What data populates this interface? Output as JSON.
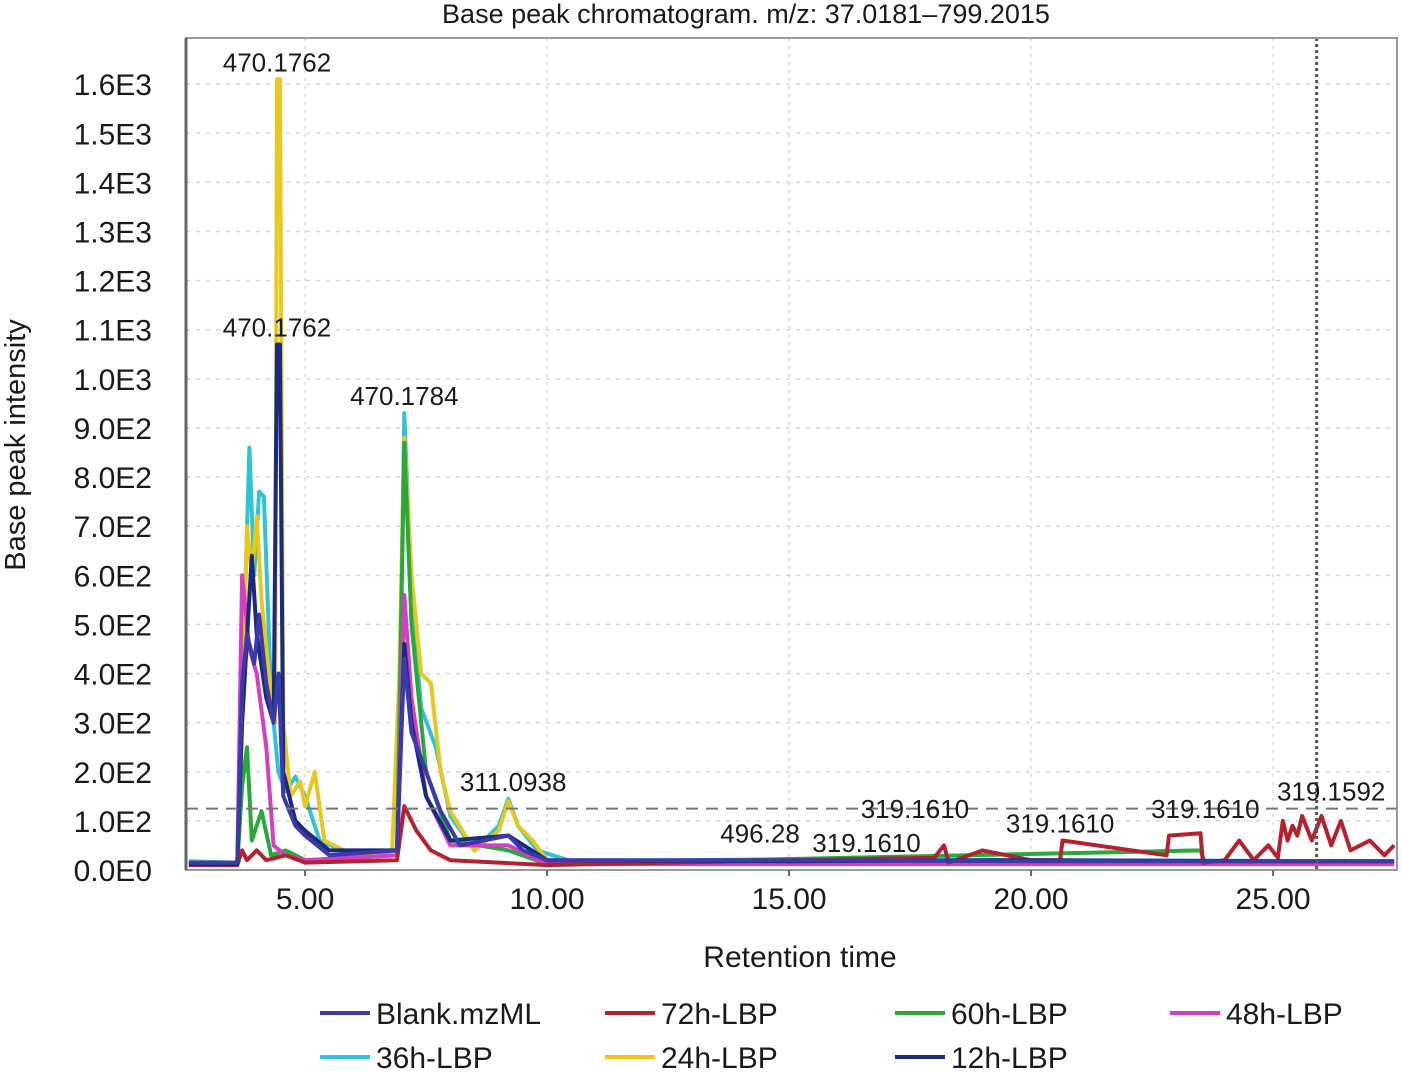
{
  "chart_data": {
    "type": "line",
    "title": "Base peak chromatogram. m/z: 37.0181–799.2015",
    "xlabel": "Retention time",
    "ylabel": "Base peak intensity",
    "xlim": [
      2.54,
      27.56
    ],
    "ylim": [
      0,
      1694
    ],
    "grid": true,
    "legend_position": "bottom",
    "x_ticks": [
      {
        "v": 5,
        "label": "5.00"
      },
      {
        "v": 10,
        "label": "10.00"
      },
      {
        "v": 15,
        "label": "15.00"
      },
      {
        "v": 20,
        "label": "20.00"
      },
      {
        "v": 25,
        "label": "25.00"
      }
    ],
    "y_ticks": [
      {
        "v": 0,
        "label": "0.0E0"
      },
      {
        "v": 100,
        "label": "1.0E2"
      },
      {
        "v": 200,
        "label": "2.0E2"
      },
      {
        "v": 300,
        "label": "3.0E2"
      },
      {
        "v": 400,
        "label": "4.0E2"
      },
      {
        "v": 500,
        "label": "5.0E2"
      },
      {
        "v": 600,
        "label": "6.0E2"
      },
      {
        "v": 700,
        "label": "7.0E2"
      },
      {
        "v": 800,
        "label": "8.0E2"
      },
      {
        "v": 900,
        "label": "9.0E2"
      },
      {
        "v": 1000,
        "label": "1.0E3"
      },
      {
        "v": 1100,
        "label": "1.1E3"
      },
      {
        "v": 1200,
        "label": "1.2E3"
      },
      {
        "v": 1300,
        "label": "1.3E3"
      },
      {
        "v": 1400,
        "label": "1.4E3"
      },
      {
        "v": 1500,
        "label": "1.5E3"
      },
      {
        "v": 1600,
        "label": "1.6E3"
      }
    ],
    "threshold_line": 125,
    "cursor_line_x": 25.9,
    "series": [
      {
        "name": "36h-LBP",
        "color": "#2fc3d6",
        "points": [
          [
            2.6,
            18
          ],
          [
            3.6,
            15
          ],
          [
            3.7,
            350
          ],
          [
            3.85,
            860
          ],
          [
            3.95,
            600
          ],
          [
            4.05,
            770
          ],
          [
            4.15,
            760
          ],
          [
            4.3,
            350
          ],
          [
            4.45,
            200
          ],
          [
            4.6,
            160
          ],
          [
            4.8,
            190
          ],
          [
            5.0,
            150
          ],
          [
            5.3,
            60
          ],
          [
            6,
            30
          ],
          [
            6.9,
            40
          ],
          [
            6.98,
            500
          ],
          [
            7.05,
            930
          ],
          [
            7.2,
            560
          ],
          [
            7.4,
            330
          ],
          [
            7.7,
            250
          ],
          [
            8.0,
            110
          ],
          [
            8.5,
            40
          ],
          [
            9.0,
            90
          ],
          [
            9.2,
            145
          ],
          [
            9.4,
            90
          ],
          [
            9.8,
            40
          ],
          [
            10.5,
            18
          ],
          [
            15,
            22
          ],
          [
            20,
            20
          ],
          [
            27.5,
            18
          ]
        ]
      },
      {
        "name": "24h-LBP",
        "color": "#e8c81e",
        "points": [
          [
            2.6,
            15
          ],
          [
            3.6,
            15
          ],
          [
            3.7,
            300
          ],
          [
            3.8,
            700
          ],
          [
            3.9,
            600
          ],
          [
            4.0,
            720
          ],
          [
            4.1,
            550
          ],
          [
            4.25,
            400
          ],
          [
            4.38,
            300
          ],
          [
            4.42,
            1610
          ],
          [
            4.48,
            1610
          ],
          [
            4.55,
            300
          ],
          [
            4.7,
            150
          ],
          [
            4.9,
            180
          ],
          [
            5.0,
            130
          ],
          [
            5.2,
            200
          ],
          [
            5.4,
            60
          ],
          [
            6,
            30
          ],
          [
            6.8,
            40
          ],
          [
            6.95,
            400
          ],
          [
            7.05,
            880
          ],
          [
            7.2,
            600
          ],
          [
            7.4,
            400
          ],
          [
            7.6,
            380
          ],
          [
            7.8,
            200
          ],
          [
            8.0,
            120
          ],
          [
            8.5,
            40
          ],
          [
            9.0,
            80
          ],
          [
            9.2,
            140
          ],
          [
            9.4,
            90
          ],
          [
            9.7,
            60
          ],
          [
            10,
            20
          ],
          [
            27.5,
            15
          ]
        ]
      },
      {
        "name": "60h-LBP",
        "color": "#2aa83a",
        "points": [
          [
            2.6,
            12
          ],
          [
            3.6,
            12
          ],
          [
            3.7,
            170
          ],
          [
            3.8,
            250
          ],
          [
            3.9,
            60
          ],
          [
            4.1,
            120
          ],
          [
            4.3,
            30
          ],
          [
            4.6,
            40
          ],
          [
            5.0,
            20
          ],
          [
            6.9,
            30
          ],
          [
            7.05,
            870
          ],
          [
            7.2,
            500
          ],
          [
            7.5,
            200
          ],
          [
            8.0,
            60
          ],
          [
            9.2,
            40
          ],
          [
            10,
            12
          ],
          [
            23.5,
            40
          ],
          [
            23.6,
            12
          ],
          [
            27.5,
            12
          ]
        ]
      },
      {
        "name": "48h-LBP",
        "color": "#d23fc3",
        "points": [
          [
            2.6,
            12
          ],
          [
            3.6,
            12
          ],
          [
            3.7,
            600
          ],
          [
            3.85,
            450
          ],
          [
            4.0,
            400
          ],
          [
            4.2,
            250
          ],
          [
            4.35,
            50
          ],
          [
            4.6,
            30
          ],
          [
            5.0,
            20
          ],
          [
            6.9,
            30
          ],
          [
            7.05,
            560
          ],
          [
            7.2,
            350
          ],
          [
            7.5,
            150
          ],
          [
            8.0,
            50
          ],
          [
            9.2,
            50
          ],
          [
            10,
            12
          ],
          [
            27.5,
            12
          ]
        ]
      },
      {
        "name": "72h-LBP",
        "color": "#b3222e",
        "points": [
          [
            2.6,
            10
          ],
          [
            3.6,
            10
          ],
          [
            3.7,
            40
          ],
          [
            3.8,
            20
          ],
          [
            4.0,
            40
          ],
          [
            4.2,
            20
          ],
          [
            4.6,
            30
          ],
          [
            5.0,
            15
          ],
          [
            6.9,
            20
          ],
          [
            7.05,
            130
          ],
          [
            7.3,
            80
          ],
          [
            7.6,
            40
          ],
          [
            8.0,
            20
          ],
          [
            10,
            10
          ],
          [
            15,
            20
          ],
          [
            18.0,
            25
          ],
          [
            18.2,
            50
          ],
          [
            18.3,
            15
          ],
          [
            19.0,
            40
          ],
          [
            20.0,
            20
          ],
          [
            20.6,
            20
          ],
          [
            20.65,
            60
          ],
          [
            22.8,
            30
          ],
          [
            22.85,
            70
          ],
          [
            23.5,
            75
          ],
          [
            23.55,
            15
          ],
          [
            24.0,
            20
          ],
          [
            24.3,
            60
          ],
          [
            24.6,
            20
          ],
          [
            24.9,
            50
          ],
          [
            25.1,
            25
          ],
          [
            25.2,
            100
          ],
          [
            25.3,
            60
          ],
          [
            25.4,
            90
          ],
          [
            25.5,
            70
          ],
          [
            25.6,
            110
          ],
          [
            25.8,
            60
          ],
          [
            26.0,
            110
          ],
          [
            26.2,
            50
          ],
          [
            26.4,
            100
          ],
          [
            26.6,
            40
          ],
          [
            27.0,
            60
          ],
          [
            27.3,
            30
          ],
          [
            27.5,
            50
          ]
        ]
      },
      {
        "name": "12h-LBP",
        "color": "#1a2a7c",
        "points": [
          [
            2.6,
            12
          ],
          [
            3.6,
            12
          ],
          [
            3.7,
            300
          ],
          [
            3.9,
            640
          ],
          [
            4.0,
            480
          ],
          [
            4.2,
            350
          ],
          [
            4.35,
            300
          ],
          [
            4.42,
            1070
          ],
          [
            4.48,
            1070
          ],
          [
            4.55,
            200
          ],
          [
            4.8,
            100
          ],
          [
            5.0,
            80
          ],
          [
            5.5,
            40
          ],
          [
            6.9,
            40
          ],
          [
            7.05,
            460
          ],
          [
            7.2,
            300
          ],
          [
            7.5,
            150
          ],
          [
            8.0,
            60
          ],
          [
            9.2,
            70
          ],
          [
            10,
            20
          ],
          [
            15,
            18
          ],
          [
            20,
            20
          ],
          [
            25,
            18
          ],
          [
            27.5,
            18
          ]
        ]
      },
      {
        "name": "Blank.mzML",
        "color": "#3a3aa8",
        "points": [
          [
            2.6,
            15
          ],
          [
            3.6,
            15
          ],
          [
            3.7,
            380
          ],
          [
            3.8,
            480
          ],
          [
            3.95,
            420
          ],
          [
            4.05,
            520
          ],
          [
            4.2,
            380
          ],
          [
            4.35,
            300
          ],
          [
            4.45,
            400
          ],
          [
            4.55,
            150
          ],
          [
            4.8,
            90
          ],
          [
            5.0,
            70
          ],
          [
            5.5,
            30
          ],
          [
            6.9,
            40
          ],
          [
            7.05,
            430
          ],
          [
            7.2,
            280
          ],
          [
            7.5,
            200
          ],
          [
            7.8,
            120
          ],
          [
            8.2,
            50
          ],
          [
            9.2,
            70
          ],
          [
            9.5,
            40
          ],
          [
            10,
            20
          ],
          [
            15,
            20
          ],
          [
            20,
            18
          ],
          [
            25,
            18
          ],
          [
            27.5,
            18
          ]
        ]
      }
    ],
    "annotations": [
      {
        "text": "470.1762",
        "x": 4.42,
        "y": 1610
      },
      {
        "text": "470.1762",
        "x": 4.42,
        "y": 1070
      },
      {
        "text": "470.1784",
        "x": 7.05,
        "y": 930
      },
      {
        "text": "311.0938",
        "x": 9.3,
        "y": 145
      },
      {
        "text": "496.28",
        "x": 14.4,
        "y": 40
      },
      {
        "text": "319.1610",
        "x": 16.6,
        "y": 20
      },
      {
        "text": "319.1610",
        "x": 17.6,
        "y": 90
      },
      {
        "text": "319.1610",
        "x": 20.6,
        "y": 60
      },
      {
        "text": "319.1610",
        "x": 23.6,
        "y": 90
      },
      {
        "text": "319.1592",
        "x": 26.2,
        "y": 125
      }
    ]
  }
}
